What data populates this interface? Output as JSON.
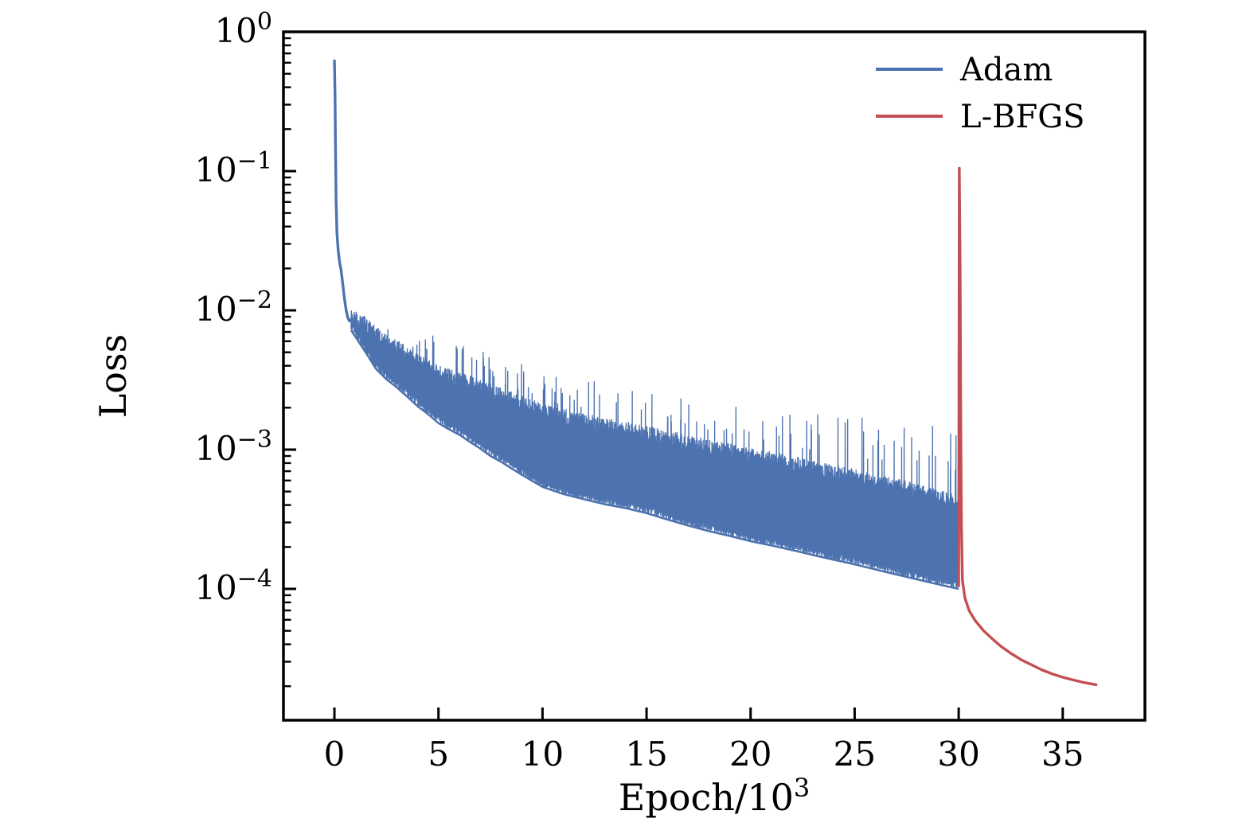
{
  "figure": {
    "background": "#ffffff",
    "frame_color": "#000000",
    "text_color": "#000000"
  },
  "chart_data": {
    "type": "line",
    "title": "",
    "xlabel": {
      "text": "Epoch/10",
      "superscript": "3"
    },
    "ylabel": "Loss",
    "x_axis": {
      "min": -2.45,
      "max": 38.95,
      "ticks": [
        0,
        5,
        10,
        15,
        20,
        25,
        30,
        35
      ]
    },
    "y_axis": {
      "scale": "log",
      "min": 1.14e-05,
      "max": 1.0,
      "tick_exponents": [
        0,
        -1,
        -2,
        -3,
        -4
      ],
      "label_base": "10",
      "minor_ticks_per_decade": [
        2,
        3,
        4,
        5,
        6,
        7,
        8,
        9
      ]
    },
    "grid": false,
    "legend": {
      "position": "top-right",
      "frame": false,
      "entries": [
        {
          "label": "Adam",
          "color": "#4C72B0"
        },
        {
          "label": "L-BFGS",
          "color": "#C44E52"
        }
      ]
    },
    "series": [
      {
        "name": "Adam",
        "color": "#4C72B0",
        "head_points": [
          [
            0.0,
            0.62
          ],
          [
            0.03,
            0.35
          ],
          [
            0.05,
            0.16
          ],
          [
            0.08,
            0.062
          ],
          [
            0.12,
            0.036
          ],
          [
            0.18,
            0.027
          ],
          [
            0.25,
            0.022
          ],
          [
            0.32,
            0.0195
          ],
          [
            0.4,
            0.0155
          ],
          [
            0.48,
            0.0122
          ],
          [
            0.56,
            0.0101
          ],
          [
            0.64,
            0.0089
          ],
          [
            0.72,
            0.0084
          ],
          [
            0.8,
            0.0086
          ]
        ],
        "noise_band": {
          "x": [
            0.8,
            1.0,
            1.5,
            2.0,
            2.5,
            3.0,
            3.5,
            4.0,
            4.5,
            5.0,
            5.5,
            6.0,
            6.5,
            7.0,
            7.5,
            8.0,
            9.0,
            10.0,
            11.0,
            12.0,
            13.0,
            14.0,
            15.0,
            16.0,
            17.0,
            18.0,
            19.0,
            20.0,
            21.0,
            22.0,
            23.0,
            24.0,
            25.0,
            26.0,
            27.0,
            28.0,
            29.0,
            30.0
          ],
          "lower": [
            0.0072,
            0.0065,
            0.005,
            0.0038,
            0.0032,
            0.0028,
            0.0024,
            0.00205,
            0.0018,
            0.00155,
            0.0014,
            0.00128,
            0.00114,
            0.00102,
            0.0009,
            0.00082,
            0.00066,
            0.00054,
            0.00048,
            0.00044,
            0.000405,
            0.00038,
            0.00035,
            0.000315,
            0.000285,
            0.00026,
            0.00024,
            0.00022,
            0.000205,
            0.00019,
            0.000175,
            0.000162,
            0.00015,
            0.000138,
            0.000127,
            0.000117,
            0.000108,
            0.0001
          ],
          "dense_top": [
            0.0086,
            0.0084,
            0.0076,
            0.0064,
            0.0058,
            0.0052,
            0.0046,
            0.0041,
            0.0037,
            0.0034,
            0.0032,
            0.003,
            0.00285,
            0.0027,
            0.0025,
            0.00235,
            0.00205,
            0.0018,
            0.00165,
            0.00152,
            0.00142,
            0.00133,
            0.00124,
            0.00115,
            0.00108,
            0.001,
            0.00093,
            0.00087,
            0.00081,
            0.00076,
            0.0007,
            0.00065,
            0.00061,
            0.00056,
            0.00052,
            0.00048,
            0.00044,
            0.0004
          ],
          "spike_top": [
            0.0092,
            0.009,
            0.0088,
            0.0086,
            0.0078,
            0.0072,
            0.0066,
            0.0062,
            0.0066,
            0.007,
            0.0062,
            0.0056,
            0.0064,
            0.006,
            0.0052,
            0.0048,
            0.0042,
            0.0036,
            0.0032,
            0.003,
            0.0045,
            0.0029,
            0.0027,
            0.0025,
            0.00235,
            0.0022,
            0.0021,
            0.002,
            0.0019,
            0.0018,
            0.0019,
            0.0017,
            0.0019,
            0.0016,
            0.00155,
            0.0015,
            0.0015,
            0.00125
          ]
        }
      },
      {
        "name": "L-BFGS",
        "color": "#C44E52",
        "points": [
          [
            30.0,
            0.000105
          ],
          [
            30.03,
            0.105
          ],
          [
            30.07,
            0.02
          ],
          [
            30.1,
            0.0016
          ],
          [
            30.13,
            0.0003
          ],
          [
            30.18,
            0.000115
          ],
          [
            30.3,
            8.6e-05
          ],
          [
            30.5,
            7e-05
          ],
          [
            30.8,
            5.9e-05
          ],
          [
            31.2,
            5e-05
          ],
          [
            31.6,
            4.4e-05
          ],
          [
            32.0,
            3.9e-05
          ],
          [
            32.5,
            3.45e-05
          ],
          [
            33.0,
            3.1e-05
          ],
          [
            33.5,
            2.85e-05
          ],
          [
            34.0,
            2.62e-05
          ],
          [
            34.5,
            2.45e-05
          ],
          [
            35.0,
            2.32e-05
          ],
          [
            35.5,
            2.22e-05
          ],
          [
            36.0,
            2.13e-05
          ],
          [
            36.3,
            2.09e-05
          ],
          [
            36.6,
            2.05e-05
          ]
        ]
      }
    ]
  }
}
